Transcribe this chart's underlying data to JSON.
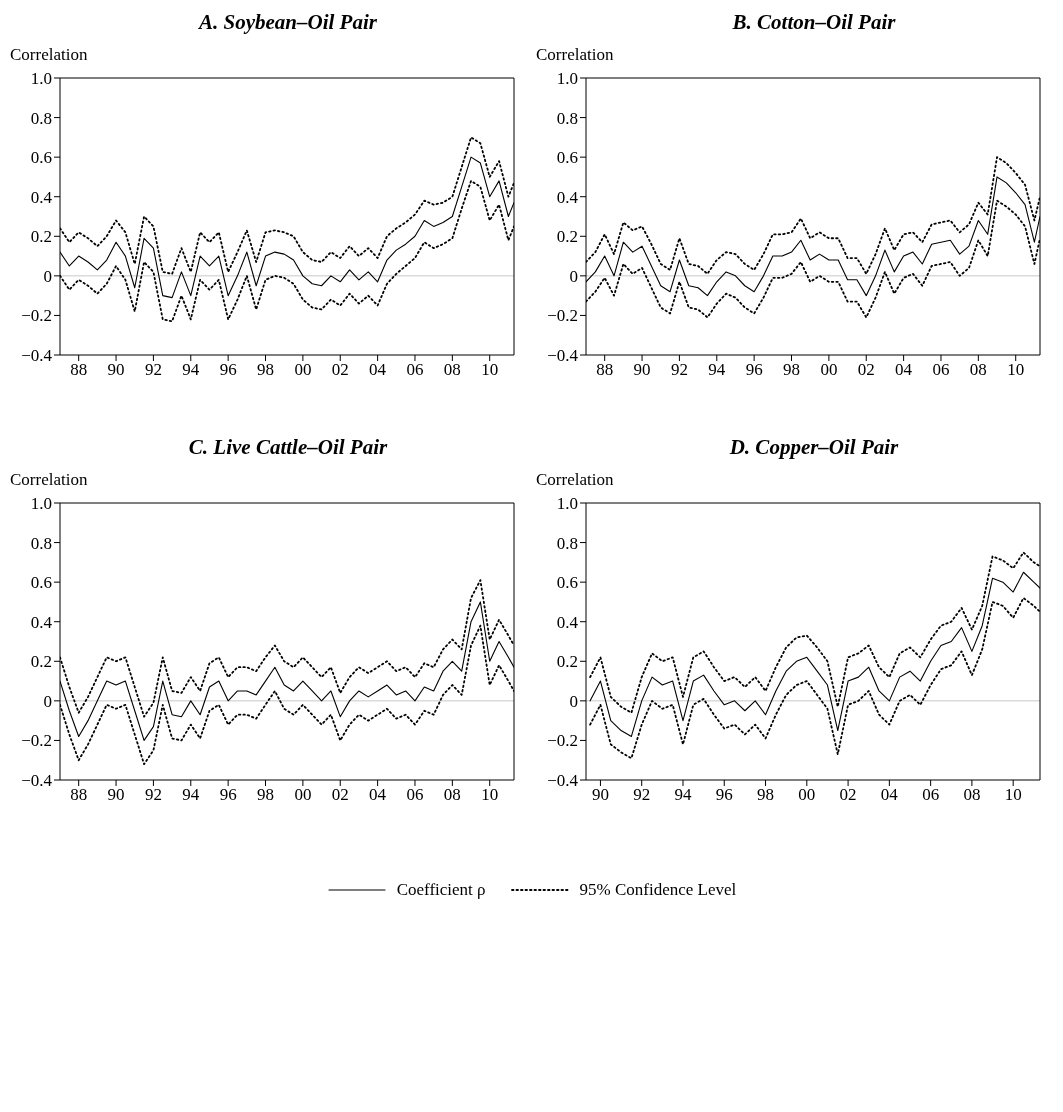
{
  "chart_data": [
    {
      "type": "line",
      "title": "A. Soybean–Oil Pair",
      "ylabel": "Correlation",
      "legend": "bottom",
      "x": [
        1987,
        1987.5,
        1988,
        1988.5,
        1989,
        1989.5,
        1990,
        1990.5,
        1991,
        1991.5,
        1992,
        1992.5,
        1993,
        1993.5,
        1994,
        1994.5,
        1995,
        1995.5,
        1996,
        1996.5,
        1997,
        1997.5,
        1998,
        1998.5,
        1999,
        1999.5,
        2000,
        2000.5,
        2001,
        2001.5,
        2002,
        2002.5,
        2003,
        2003.5,
        2004,
        2004.5,
        2005,
        2005.5,
        2006,
        2006.5,
        2007,
        2007.5,
        2008,
        2008.5,
        2009,
        2009.5,
        2010,
        2010.5,
        2011,
        2011.3
      ],
      "xlim": [
        1987,
        2011.3
      ],
      "xticks": [
        {
          "value": 1988,
          "label": "88"
        },
        {
          "value": 1990,
          "label": "90"
        },
        {
          "value": 1992,
          "label": "92"
        },
        {
          "value": 1994,
          "label": "94"
        },
        {
          "value": 1996,
          "label": "96"
        },
        {
          "value": 1998,
          "label": "98"
        },
        {
          "value": 2000,
          "label": "00"
        },
        {
          "value": 2002,
          "label": "02"
        },
        {
          "value": 2004,
          "label": "04"
        },
        {
          "value": 2006,
          "label": "06"
        },
        {
          "value": 2008,
          "label": "08"
        },
        {
          "value": 2010,
          "label": "10"
        }
      ],
      "ylim": [
        -0.4,
        1
      ],
      "yticks": [
        {
          "value": -0.4,
          "label": "−0.4"
        },
        {
          "value": -0.2,
          "label": "−0.2"
        },
        0,
        0.2,
        0.4,
        0.6,
        0.8,
        {
          "value": 1,
          "label": "1.0"
        }
      ],
      "ref_lines": [
        {
          "axis": "y",
          "value": 0,
          "color": "#c8c8c8"
        }
      ],
      "series": [
        {
          "name": "Coefficient ρ",
          "color": "#000000",
          "line_style": "solid",
          "values": [
            0.12,
            0.05,
            0.1,
            0.07,
            0.03,
            0.08,
            0.17,
            0.1,
            -0.06,
            0.19,
            0.14,
            -0.1,
            -0.11,
            0.02,
            -0.1,
            0.1,
            0.05,
            0.1,
            -0.1,
            0.0,
            0.12,
            -0.05,
            0.1,
            0.12,
            0.11,
            0.08,
            0.0,
            -0.04,
            -0.05,
            0.0,
            -0.03,
            0.03,
            -0.02,
            0.02,
            -0.03,
            0.08,
            0.13,
            0.16,
            0.2,
            0.28,
            0.25,
            0.27,
            0.3,
            0.45,
            0.6,
            0.57,
            0.4,
            0.48,
            0.3,
            0.37
          ]
        },
        {
          "name": "95% Confidence Level",
          "color": "#000000",
          "line_style": "dotted",
          "values": [
            0.24,
            0.17,
            0.22,
            0.19,
            0.15,
            0.2,
            0.28,
            0.22,
            0.06,
            0.3,
            0.25,
            0.02,
            0.01,
            0.14,
            0.02,
            0.22,
            0.17,
            0.22,
            0.02,
            0.12,
            0.23,
            0.07,
            0.22,
            0.23,
            0.22,
            0.2,
            0.12,
            0.08,
            0.07,
            0.12,
            0.09,
            0.15,
            0.1,
            0.14,
            0.09,
            0.2,
            0.24,
            0.27,
            0.31,
            0.38,
            0.36,
            0.37,
            0.4,
            0.55,
            0.7,
            0.67,
            0.5,
            0.58,
            0.4,
            0.47
          ]
        },
        {
          "color": "#000000",
          "line_style": "dotted",
          "values": [
            0.0,
            -0.07,
            -0.02,
            -0.05,
            -0.09,
            -0.04,
            0.05,
            -0.02,
            -0.18,
            0.07,
            0.02,
            -0.22,
            -0.23,
            -0.1,
            -0.22,
            -0.02,
            -0.07,
            -0.02,
            -0.22,
            -0.12,
            0.0,
            -0.17,
            -0.02,
            0.0,
            -0.01,
            -0.04,
            -0.12,
            -0.16,
            -0.17,
            -0.12,
            -0.15,
            -0.09,
            -0.14,
            -0.1,
            -0.15,
            -0.04,
            0.01,
            0.05,
            0.09,
            0.17,
            0.14,
            0.16,
            0.19,
            0.34,
            0.48,
            0.45,
            0.28,
            0.36,
            0.18,
            0.25
          ]
        }
      ]
    },
    {
      "type": "line",
      "title": "B. Cotton–Oil Pair",
      "ylabel": "Correlation",
      "x": [
        1987,
        1987.5,
        1988,
        1988.5,
        1989,
        1989.5,
        1990,
        1990.5,
        1991,
        1991.5,
        1992,
        1992.5,
        1993,
        1993.5,
        1994,
        1994.5,
        1995,
        1995.5,
        1996,
        1996.5,
        1997,
        1997.5,
        1998,
        1998.5,
        1999,
        1999.5,
        2000,
        2000.5,
        2001,
        2001.5,
        2002,
        2002.5,
        2003,
        2003.5,
        2004,
        2004.5,
        2005,
        2005.5,
        2006,
        2006.5,
        2007,
        2007.5,
        2008,
        2008.5,
        2009,
        2009.5,
        2010,
        2010.5,
        2011,
        2011.3
      ],
      "xlim": [
        1987,
        2011.3
      ],
      "xticks": [
        {
          "value": 1988,
          "label": "88"
        },
        {
          "value": 1990,
          "label": "90"
        },
        {
          "value": 1992,
          "label": "92"
        },
        {
          "value": 1994,
          "label": "94"
        },
        {
          "value": 1996,
          "label": "96"
        },
        {
          "value": 1998,
          "label": "98"
        },
        {
          "value": 2000,
          "label": "00"
        },
        {
          "value": 2002,
          "label": "02"
        },
        {
          "value": 2004,
          "label": "04"
        },
        {
          "value": 2006,
          "label": "06"
        },
        {
          "value": 2008,
          "label": "08"
        },
        {
          "value": 2010,
          "label": "10"
        }
      ],
      "ylim": [
        -0.4,
        1
      ],
      "yticks": [
        {
          "value": -0.4,
          "label": "−0.4"
        },
        {
          "value": -0.2,
          "label": "−0.2"
        },
        0,
        0.2,
        0.4,
        0.6,
        0.8,
        {
          "value": 1,
          "label": "1.0"
        }
      ],
      "ref_lines": [
        {
          "axis": "y",
          "value": 0,
          "color": "#c8c8c8"
        }
      ],
      "series": [
        {
          "color": "#000000",
          "line_style": "solid",
          "values": [
            -0.03,
            0.02,
            0.1,
            0.0,
            0.17,
            0.12,
            0.15,
            0.05,
            -0.05,
            -0.08,
            0.08,
            -0.05,
            -0.06,
            -0.1,
            -0.03,
            0.02,
            0.0,
            -0.05,
            -0.08,
            0.0,
            0.1,
            0.1,
            0.12,
            0.18,
            0.08,
            0.11,
            0.08,
            0.08,
            -0.02,
            -0.02,
            -0.1,
            0.0,
            0.13,
            0.02,
            0.1,
            0.12,
            0.06,
            0.16,
            0.17,
            0.18,
            0.11,
            0.15,
            0.28,
            0.21,
            0.5,
            0.47,
            0.42,
            0.36,
            0.17,
            0.3
          ]
        },
        {
          "color": "#000000",
          "line_style": "dotted",
          "values": [
            0.07,
            0.12,
            0.21,
            0.11,
            0.27,
            0.23,
            0.25,
            0.16,
            0.06,
            0.03,
            0.19,
            0.06,
            0.05,
            0.01,
            0.08,
            0.12,
            0.11,
            0.06,
            0.03,
            0.11,
            0.21,
            0.21,
            0.22,
            0.29,
            0.19,
            0.22,
            0.19,
            0.19,
            0.09,
            0.09,
            0.01,
            0.11,
            0.24,
            0.13,
            0.21,
            0.22,
            0.17,
            0.26,
            0.27,
            0.28,
            0.22,
            0.26,
            0.37,
            0.31,
            0.6,
            0.57,
            0.52,
            0.46,
            0.28,
            0.4
          ]
        },
        {
          "color": "#000000",
          "line_style": "dotted",
          "values": [
            -0.13,
            -0.08,
            -0.01,
            -0.1,
            0.06,
            0.01,
            0.04,
            -0.06,
            -0.16,
            -0.19,
            -0.03,
            -0.16,
            -0.17,
            -0.21,
            -0.14,
            -0.09,
            -0.11,
            -0.16,
            -0.19,
            -0.11,
            -0.01,
            -0.01,
            0.01,
            0.07,
            -0.03,
            0.0,
            -0.03,
            -0.03,
            -0.13,
            -0.13,
            -0.21,
            -0.11,
            0.02,
            -0.09,
            -0.01,
            0.01,
            -0.05,
            0.05,
            0.06,
            0.07,
            0.0,
            0.04,
            0.18,
            0.1,
            0.38,
            0.35,
            0.31,
            0.25,
            0.06,
            0.19
          ]
        }
      ]
    },
    {
      "type": "line",
      "title": "C. Live Cattle–Oil Pair",
      "ylabel": "Correlation",
      "x": [
        1987,
        1987.5,
        1988,
        1988.5,
        1989,
        1989.5,
        1990,
        1990.5,
        1991,
        1991.5,
        1992,
        1992.5,
        1993,
        1993.5,
        1994,
        1994.5,
        1995,
        1995.5,
        1996,
        1996.5,
        1997,
        1997.5,
        1998,
        1998.5,
        1999,
        1999.5,
        2000,
        2000.5,
        2001,
        2001.5,
        2002,
        2002.5,
        2003,
        2003.5,
        2004,
        2004.5,
        2005,
        2005.5,
        2006,
        2006.5,
        2007,
        2007.5,
        2008,
        2008.5,
        2009,
        2009.5,
        2010,
        2010.5,
        2011,
        2011.3
      ],
      "xlim": [
        1987,
        2011.3
      ],
      "xticks": [
        {
          "value": 1988,
          "label": "88"
        },
        {
          "value": 1990,
          "label": "90"
        },
        {
          "value": 1992,
          "label": "92"
        },
        {
          "value": 1994,
          "label": "94"
        },
        {
          "value": 1996,
          "label": "96"
        },
        {
          "value": 1998,
          "label": "98"
        },
        {
          "value": 2000,
          "label": "00"
        },
        {
          "value": 2002,
          "label": "02"
        },
        {
          "value": 2004,
          "label": "04"
        },
        {
          "value": 2006,
          "label": "06"
        },
        {
          "value": 2008,
          "label": "08"
        },
        {
          "value": 2010,
          "label": "10"
        }
      ],
      "ylim": [
        -0.4,
        1
      ],
      "yticks": [
        {
          "value": -0.4,
          "label": "−0.4"
        },
        {
          "value": -0.2,
          "label": "−0.2"
        },
        0,
        0.2,
        0.4,
        0.6,
        0.8,
        {
          "value": 1,
          "label": "1.0"
        }
      ],
      "ref_lines": [
        {
          "axis": "y",
          "value": 0,
          "color": "#c8c8c8"
        }
      ],
      "series": [
        {
          "color": "#000000",
          "line_style": "solid",
          "values": [
            0.1,
            -0.05,
            -0.18,
            -0.1,
            0.0,
            0.1,
            0.08,
            0.1,
            -0.05,
            -0.2,
            -0.13,
            0.1,
            -0.07,
            -0.08,
            0.0,
            -0.07,
            0.07,
            0.1,
            0.0,
            0.05,
            0.05,
            0.03,
            0.1,
            0.17,
            0.08,
            0.05,
            0.1,
            0.05,
            0.0,
            0.05,
            -0.08,
            0.0,
            0.05,
            0.02,
            0.05,
            0.08,
            0.03,
            0.05,
            0.0,
            0.07,
            0.05,
            0.15,
            0.2,
            0.15,
            0.4,
            0.5,
            0.2,
            0.3,
            0.22,
            0.17
          ]
        },
        {
          "color": "#000000",
          "line_style": "dotted",
          "values": [
            0.22,
            0.07,
            -0.06,
            0.02,
            0.12,
            0.22,
            0.2,
            0.22,
            0.07,
            -0.08,
            -0.01,
            0.22,
            0.05,
            0.04,
            0.12,
            0.05,
            0.19,
            0.22,
            0.12,
            0.17,
            0.17,
            0.15,
            0.22,
            0.28,
            0.2,
            0.17,
            0.22,
            0.17,
            0.12,
            0.17,
            0.04,
            0.12,
            0.17,
            0.14,
            0.17,
            0.2,
            0.15,
            0.17,
            0.12,
            0.19,
            0.17,
            0.26,
            0.31,
            0.26,
            0.52,
            0.61,
            0.31,
            0.41,
            0.33,
            0.28
          ]
        },
        {
          "color": "#000000",
          "line_style": "dotted",
          "values": [
            -0.02,
            -0.17,
            -0.3,
            -0.22,
            -0.12,
            -0.02,
            -0.04,
            -0.02,
            -0.17,
            -0.32,
            -0.25,
            -0.02,
            -0.19,
            -0.2,
            -0.12,
            -0.19,
            -0.05,
            -0.02,
            -0.12,
            -0.07,
            -0.07,
            -0.09,
            -0.02,
            0.05,
            -0.04,
            -0.07,
            -0.02,
            -0.07,
            -0.12,
            -0.07,
            -0.2,
            -0.12,
            -0.07,
            -0.1,
            -0.07,
            -0.04,
            -0.09,
            -0.07,
            -0.12,
            -0.05,
            -0.07,
            0.03,
            0.08,
            0.03,
            0.28,
            0.38,
            0.08,
            0.18,
            0.1,
            0.05
          ]
        }
      ]
    },
    {
      "type": "line",
      "title": "D. Copper–Oil Pair",
      "ylabel": "Correlation",
      "x": [
        1989.5,
        1990,
        1990.5,
        1991,
        1991.5,
        1992,
        1992.5,
        1993,
        1993.5,
        1994,
        1994.5,
        1995,
        1995.5,
        1996,
        1996.5,
        1997,
        1997.5,
        1998,
        1998.5,
        1999,
        1999.5,
        2000,
        2000.5,
        2001,
        2001.5,
        2002,
        2002.5,
        2003,
        2003.5,
        2004,
        2004.5,
        2005,
        2005.5,
        2006,
        2006.5,
        2007,
        2007.5,
        2008,
        2008.5,
        2009,
        2009.5,
        2010,
        2010.5,
        2011,
        2011.3
      ],
      "xlim": [
        1989.3,
        2011.3
      ],
      "xticks": [
        {
          "value": 1990,
          "label": "90"
        },
        {
          "value": 1992,
          "label": "92"
        },
        {
          "value": 1994,
          "label": "94"
        },
        {
          "value": 1996,
          "label": "96"
        },
        {
          "value": 1998,
          "label": "98"
        },
        {
          "value": 2000,
          "label": "00"
        },
        {
          "value": 2002,
          "label": "02"
        },
        {
          "value": 2004,
          "label": "04"
        },
        {
          "value": 2006,
          "label": "06"
        },
        {
          "value": 2008,
          "label": "08"
        },
        {
          "value": 2010,
          "label": "10"
        }
      ],
      "ylim": [
        -0.4,
        1
      ],
      "yticks": [
        {
          "value": -0.4,
          "label": "−0.4"
        },
        {
          "value": -0.2,
          "label": "−0.2"
        },
        0,
        0.2,
        0.4,
        0.6,
        0.8,
        {
          "value": 1,
          "label": "1.0"
        }
      ],
      "ref_lines": [
        {
          "axis": "y",
          "value": 0,
          "color": "#c8c8c8"
        }
      ],
      "series": [
        {
          "color": "#000000",
          "line_style": "solid",
          "values": [
            0.0,
            0.1,
            -0.1,
            -0.15,
            -0.18,
            0.0,
            0.12,
            0.08,
            0.1,
            -0.1,
            0.1,
            0.13,
            0.05,
            -0.02,
            0.0,
            -0.05,
            0.0,
            -0.07,
            0.05,
            0.15,
            0.2,
            0.22,
            0.15,
            0.08,
            -0.15,
            0.1,
            0.12,
            0.17,
            0.05,
            0.0,
            0.12,
            0.15,
            0.1,
            0.2,
            0.28,
            0.3,
            0.37,
            0.25,
            0.38,
            0.62,
            0.6,
            0.55,
            0.65,
            0.6,
            0.57
          ]
        },
        {
          "color": "#000000",
          "line_style": "dotted",
          "values": [
            0.12,
            0.22,
            0.02,
            -0.03,
            -0.06,
            0.12,
            0.24,
            0.2,
            0.22,
            0.02,
            0.22,
            0.25,
            0.17,
            0.1,
            0.12,
            0.07,
            0.12,
            0.05,
            0.17,
            0.27,
            0.32,
            0.33,
            0.27,
            0.2,
            -0.03,
            0.22,
            0.24,
            0.28,
            0.17,
            0.12,
            0.24,
            0.27,
            0.22,
            0.31,
            0.38,
            0.4,
            0.47,
            0.36,
            0.48,
            0.73,
            0.71,
            0.67,
            0.75,
            0.7,
            0.68
          ]
        },
        {
          "color": "#000000",
          "line_style": "dotted",
          "values": [
            -0.12,
            -0.02,
            -0.22,
            -0.26,
            -0.29,
            -0.12,
            0.0,
            -0.04,
            -0.02,
            -0.22,
            -0.02,
            0.01,
            -0.07,
            -0.14,
            -0.12,
            -0.17,
            -0.12,
            -0.19,
            -0.07,
            0.03,
            0.08,
            0.1,
            0.03,
            -0.04,
            -0.27,
            -0.02,
            0.0,
            0.05,
            -0.07,
            -0.12,
            0.0,
            0.03,
            -0.02,
            0.08,
            0.16,
            0.18,
            0.25,
            0.13,
            0.26,
            0.5,
            0.48,
            0.42,
            0.52,
            0.48,
            0.45
          ]
        }
      ]
    }
  ]
}
